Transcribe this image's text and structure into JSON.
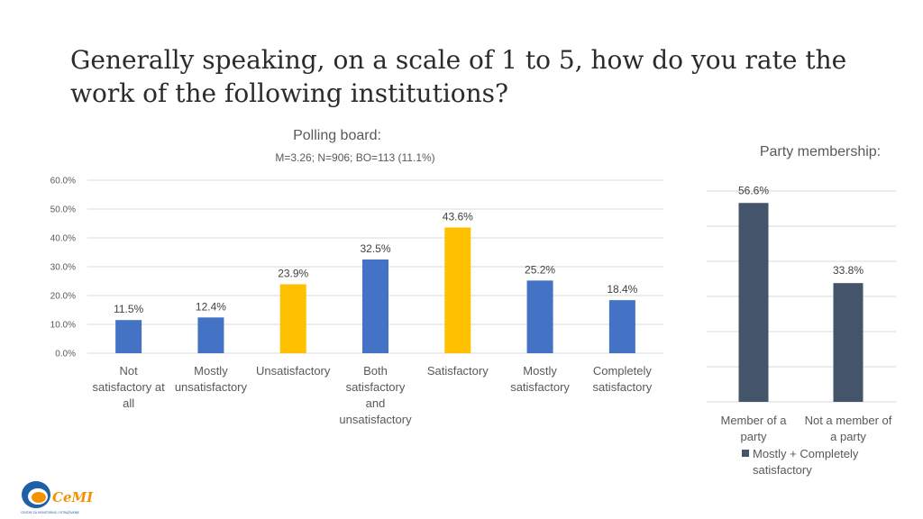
{
  "slide": {
    "title": "Generally speaking, on a scale of 1 to 5, how do you rate the work of the following institutions?",
    "logo_text": "CeMI",
    "logo_subtext": "CENTAR ZA MONITORING I ISTRAŽIVANJE"
  },
  "colors": {
    "blue": "#4472c4",
    "gold": "#ffc000",
    "slate": "#44546a"
  },
  "chart_data": [
    {
      "type": "bar",
      "title": "Polling board:",
      "subtitle": "M=3.26; N=906; BO=113 (11.1%)",
      "categories": [
        "Not satisfactory at all",
        "Mostly unsatisfactory",
        "Unsatisfactory",
        "Both satisfactory and unsatisfactory",
        "Satisfactory",
        "Mostly satisfactory",
        "Completely satisfactory"
      ],
      "values": [
        11.5,
        12.4,
        23.9,
        32.5,
        43.6,
        25.2,
        18.4
      ],
      "value_labels": [
        "11.5%",
        "12.4%",
        "23.9%",
        "32.5%",
        "43.6%",
        "25.2%",
        "18.4%"
      ],
      "bar_colors": [
        "blue",
        "blue",
        "gold",
        "blue",
        "gold",
        "blue",
        "blue"
      ],
      "ylim": [
        0,
        60
      ],
      "yticks": [
        "0.0%",
        "10.0%",
        "20.0%",
        "30.0%",
        "40.0%",
        "50.0%",
        "60.0%"
      ],
      "grid": true
    },
    {
      "type": "bar",
      "title": "Party membership:",
      "categories": [
        "Member of a party",
        "Not a member of a party"
      ],
      "series": [
        {
          "name": "Mostly + Completely satisfactory",
          "values": [
            56.6,
            33.8
          ]
        }
      ],
      "value_labels": [
        "56.6%",
        "33.8%"
      ],
      "ylim": [
        0,
        60
      ],
      "grid": true,
      "legend": "bottom"
    }
  ]
}
